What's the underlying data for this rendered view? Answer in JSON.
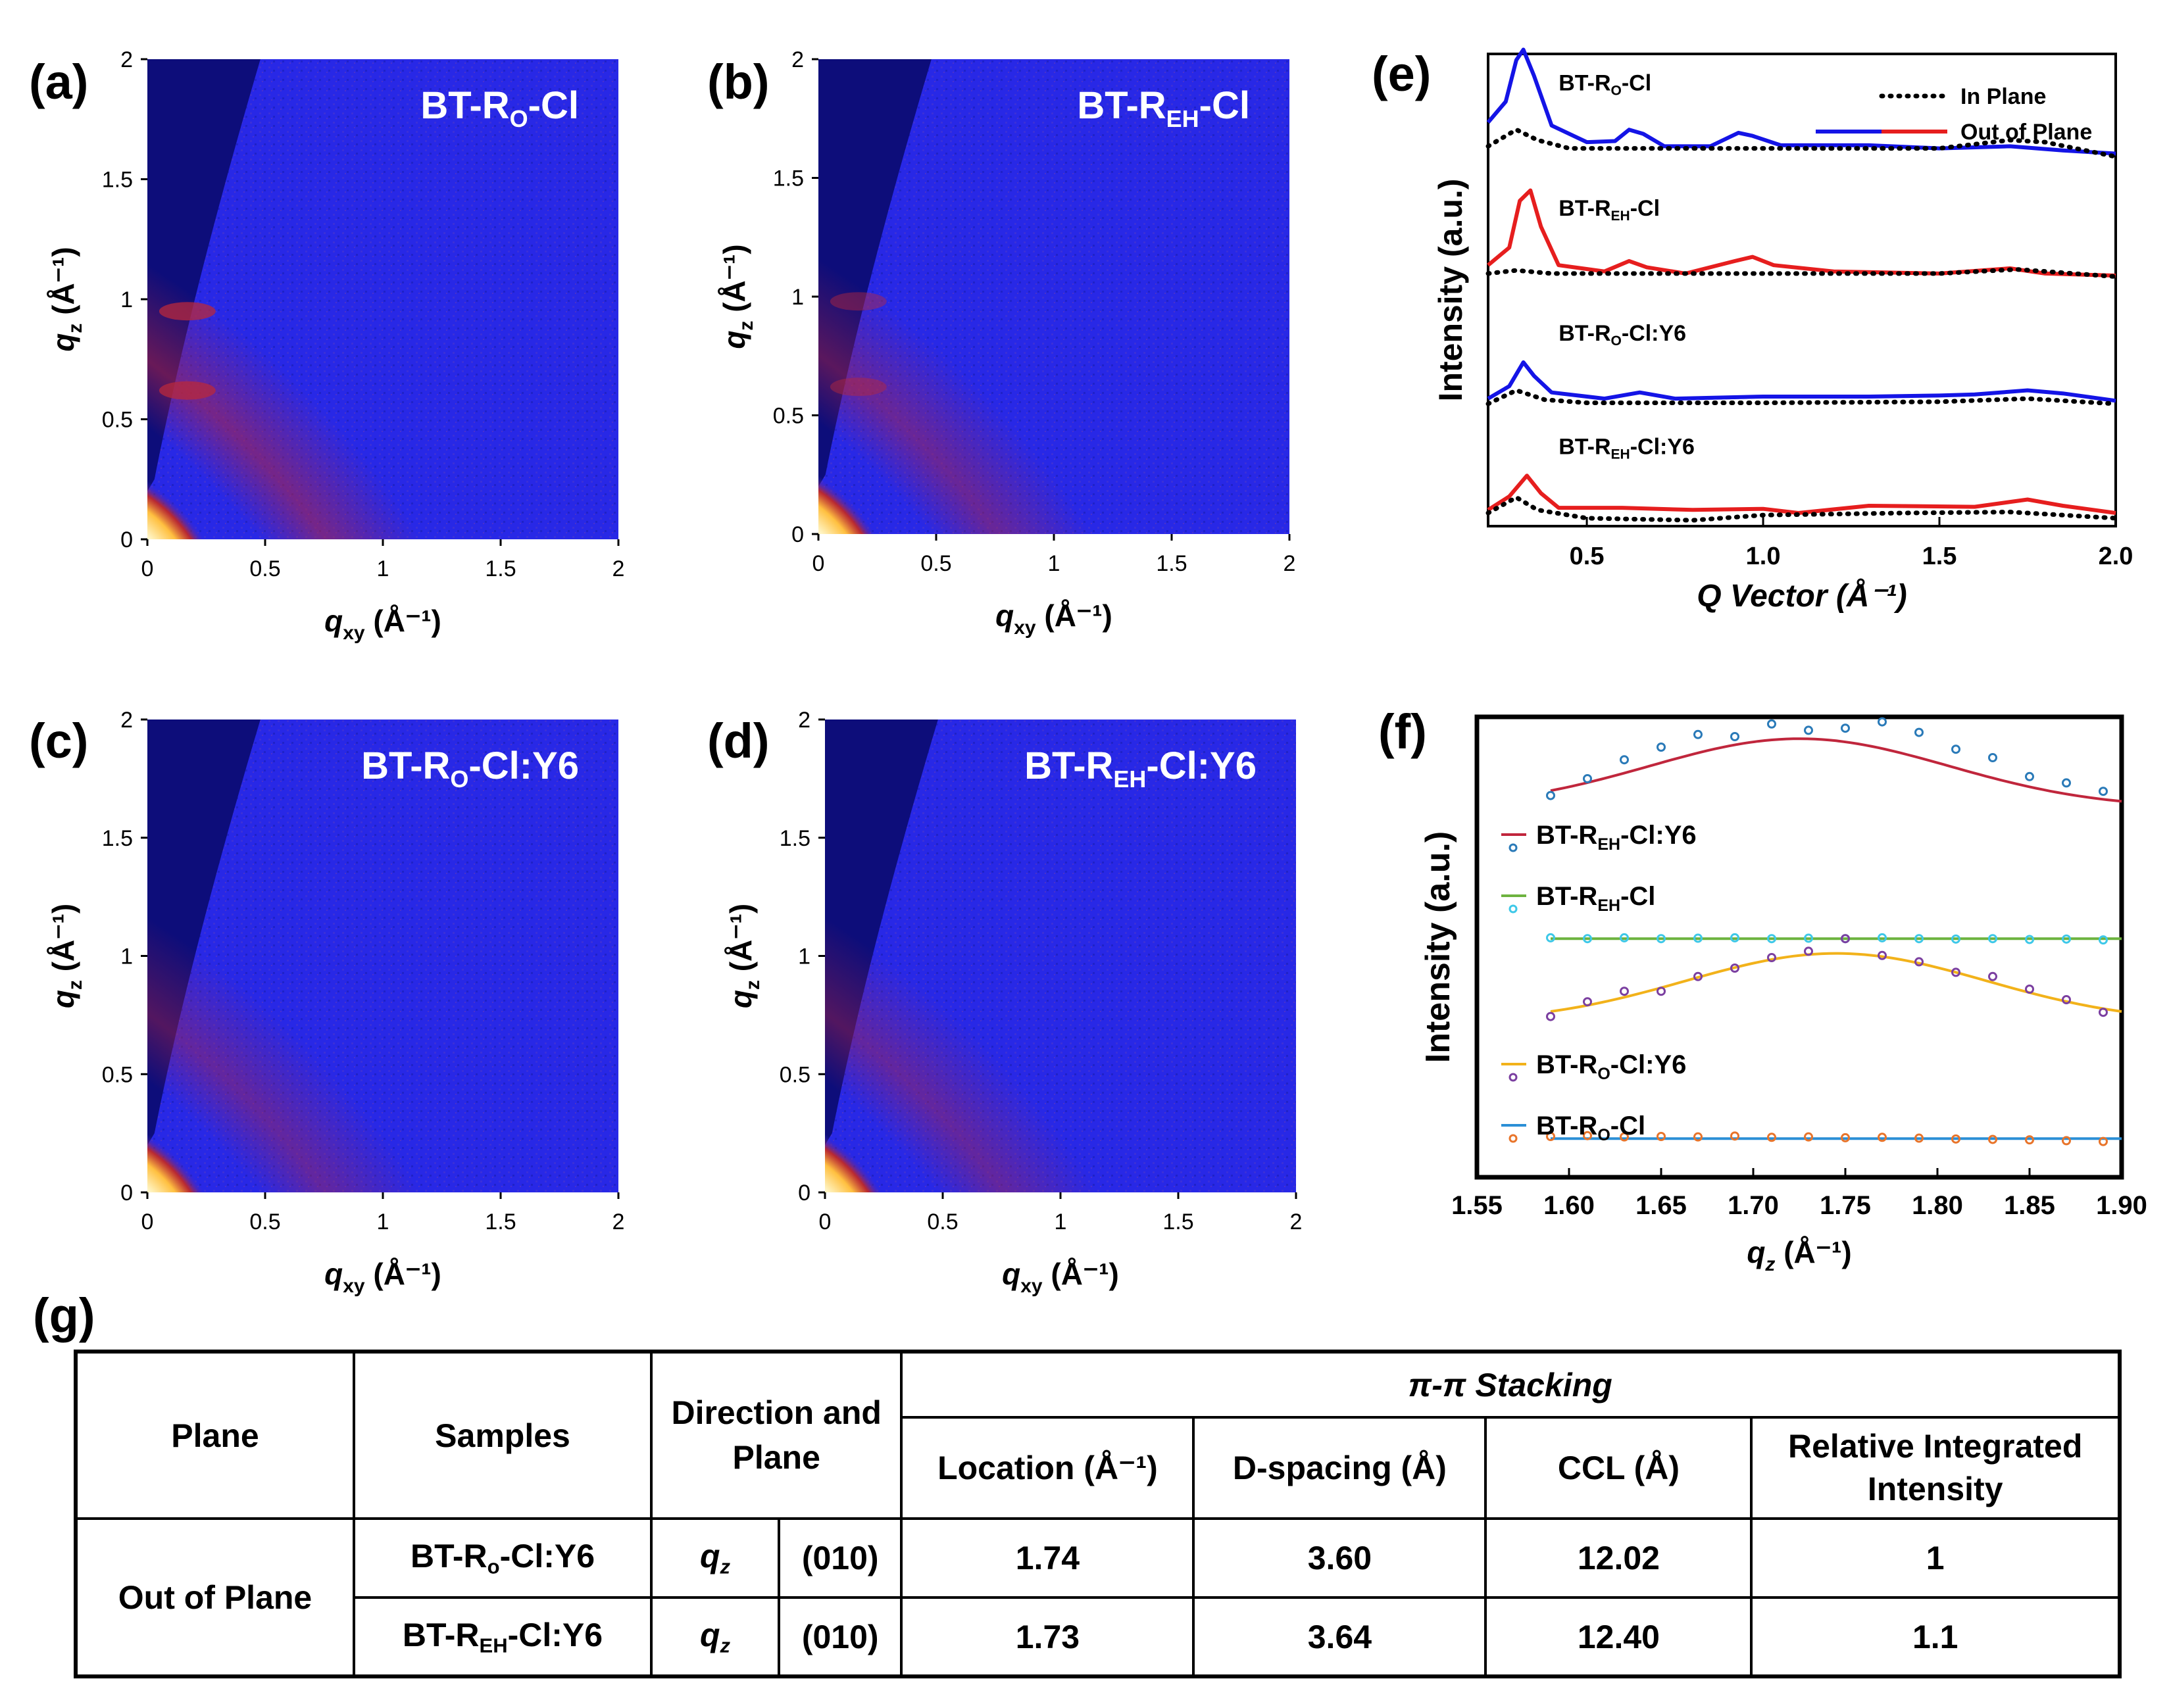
{
  "panel_labels": {
    "a": "(a)",
    "b": "(b)",
    "c": "(c)",
    "d": "(d)",
    "e": "(e)",
    "f": "(f)",
    "g": "(g)"
  },
  "colors": {
    "map_bg": "#2828e6",
    "map_dark": "#0d0d7a",
    "hot": "#ffe070",
    "ring": "#c8281e",
    "blue_line": "#1414e6",
    "red_line": "#e61e1e",
    "dotted": "#000000",
    "fit_eh_y6": "#c0263c",
    "fit_eh": "#6db33f",
    "fit_o_y6": "#f2b21a",
    "fit_o": "#2b8fd6",
    "pts_eh_y6": "#2a7ab8",
    "pts_eh": "#3ec8e8",
    "pts_o_y6": "#7b3fa0",
    "pts_o": "#e8742a"
  },
  "chart_data": [
    {
      "id": "a",
      "type": "heatmap",
      "sample_main": "BT-R",
      "sample_sub": "O",
      "sample_suffix": "-Cl",
      "xlabel_main": "q",
      "xlabel_sub": "xy",
      "xlabel_unit": "(Å⁻¹)",
      "ylabel_main": "q",
      "ylabel_sub": "z",
      "ylabel_unit": "(Å⁻¹)",
      "xlim": [
        0,
        2
      ],
      "ylim": [
        0,
        2
      ],
      "xticks": [
        "0",
        "0.5",
        "1",
        "1.5",
        "2"
      ],
      "yticks": [
        "0",
        "0.5",
        "1",
        "1.5",
        "2"
      ],
      "rings_qz": [
        0.62,
        0.95
      ],
      "ring_strength": 1.0
    },
    {
      "id": "b",
      "type": "heatmap",
      "sample_main": "BT-R",
      "sample_sub": "EH",
      "sample_suffix": "-Cl",
      "xlabel_main": "q",
      "xlabel_sub": "xy",
      "xlabel_unit": "(Å⁻¹)",
      "ylabel_main": "q",
      "ylabel_sub": "z",
      "ylabel_unit": "(Å⁻¹)",
      "xlim": [
        0,
        2
      ],
      "ylim": [
        0,
        2
      ],
      "xticks": [
        "0",
        "0.5",
        "1",
        "1.5",
        "2"
      ],
      "yticks": [
        "0",
        "0.5",
        "1",
        "1.5",
        "2"
      ],
      "rings_qz": [
        0.62,
        0.98
      ],
      "ring_strength": 0.6
    },
    {
      "id": "c",
      "type": "heatmap",
      "sample_main": "BT-R",
      "sample_sub": "O",
      "sample_suffix": "-Cl:Y6",
      "xlabel_main": "q",
      "xlabel_sub": "xy",
      "xlabel_unit": "(Å⁻¹)",
      "ylabel_main": "q",
      "ylabel_sub": "z",
      "ylabel_unit": "(Å⁻¹)",
      "xlim": [
        0,
        2
      ],
      "ylim": [
        0,
        2
      ],
      "xticks": [
        "0",
        "0.5",
        "1",
        "1.5",
        "2"
      ],
      "yticks": [
        "0",
        "0.5",
        "1",
        "1.5",
        "2"
      ],
      "rings_qz": [],
      "ring_strength": 0.4
    },
    {
      "id": "d",
      "type": "heatmap",
      "sample_main": "BT-R",
      "sample_sub": "EH",
      "sample_suffix": "-Cl:Y6",
      "xlabel_main": "q",
      "xlabel_sub": "xy",
      "xlabel_unit": "(Å⁻¹)",
      "ylabel_main": "q",
      "ylabel_sub": "z",
      "ylabel_unit": "(Å⁻¹)",
      "xlim": [
        0,
        2
      ],
      "ylim": [
        0,
        2
      ],
      "xticks": [
        "0",
        "0.5",
        "1",
        "1.5",
        "2"
      ],
      "yticks": [
        "0",
        "0.5",
        "1",
        "1.5",
        "2"
      ],
      "rings_qz": [],
      "ring_strength": 0.4
    },
    {
      "id": "e",
      "type": "line",
      "xlabel": "Q Vector  (Å⁻¹)",
      "ylabel": "Intensity (a.u.)",
      "xlim": [
        0.22,
        2.0
      ],
      "xticks": [
        0.5,
        1.0,
        1.5,
        2.0
      ],
      "xtick_labels": [
        "0.5",
        "1.0",
        "1.5",
        "2.0"
      ],
      "legend": {
        "in_plane": "In Plane",
        "out_of_plane": "Out of Plane",
        "position": "top-right"
      },
      "curves": [
        {
          "label_main": "BT-R",
          "label_sub": "O",
          "label_suffix": "-Cl",
          "color": "blue",
          "base": 0.8,
          "oop": [
            [
              0.22,
              0.25
            ],
            [
              0.27,
              0.45
            ],
            [
              0.3,
              0.85
            ],
            [
              0.32,
              0.95
            ],
            [
              0.35,
              0.7
            ],
            [
              0.4,
              0.22
            ],
            [
              0.5,
              0.06
            ],
            [
              0.58,
              0.07
            ],
            [
              0.62,
              0.18
            ],
            [
              0.66,
              0.14
            ],
            [
              0.72,
              0.02
            ],
            [
              0.85,
              0.02
            ],
            [
              0.93,
              0.15
            ],
            [
              0.97,
              0.12
            ],
            [
              1.05,
              0.03
            ],
            [
              1.3,
              0.03
            ],
            [
              1.5,
              0.0
            ],
            [
              1.7,
              0.02
            ],
            [
              1.85,
              -0.02
            ],
            [
              2.0,
              -0.05
            ]
          ],
          "ip": [
            [
              0.22,
              0.02
            ],
            [
              0.3,
              0.18
            ],
            [
              0.36,
              0.08
            ],
            [
              0.45,
              0.0
            ],
            [
              0.6,
              0.0
            ],
            [
              1.0,
              0.0
            ],
            [
              1.5,
              0.0
            ],
            [
              1.7,
              0.08
            ],
            [
              1.8,
              0.06
            ],
            [
              2.0,
              -0.08
            ]
          ]
        },
        {
          "label_main": "BT-R",
          "label_sub": "EH",
          "label_suffix": "-Cl",
          "color": "red",
          "base": 0.535,
          "oop": [
            [
              0.22,
              0.08
            ],
            [
              0.28,
              0.25
            ],
            [
              0.31,
              0.7
            ],
            [
              0.34,
              0.8
            ],
            [
              0.37,
              0.45
            ],
            [
              0.42,
              0.08
            ],
            [
              0.55,
              0.02
            ],
            [
              0.62,
              0.12
            ],
            [
              0.67,
              0.06
            ],
            [
              0.78,
              0.0
            ],
            [
              0.92,
              0.12
            ],
            [
              0.97,
              0.16
            ],
            [
              1.03,
              0.08
            ],
            [
              1.2,
              0.02
            ],
            [
              1.5,
              0.0
            ],
            [
              1.7,
              0.05
            ],
            [
              1.8,
              0.0
            ],
            [
              2.0,
              -0.02
            ]
          ],
          "ip": [
            [
              0.22,
              0.0
            ],
            [
              0.3,
              0.03
            ],
            [
              0.4,
              0.0
            ],
            [
              0.8,
              0.0
            ],
            [
              1.5,
              0.0
            ],
            [
              1.72,
              0.04
            ],
            [
              1.8,
              0.02
            ],
            [
              2.0,
              -0.03
            ]
          ]
        },
        {
          "label_main": "BT-R",
          "label_sub": "O",
          "label_suffix": "-Cl:Y6",
          "color": "blue",
          "base": 0.27,
          "oop": [
            [
              0.22,
              0.0
            ],
            [
              0.28,
              0.12
            ],
            [
              0.32,
              0.35
            ],
            [
              0.35,
              0.22
            ],
            [
              0.4,
              0.06
            ],
            [
              0.55,
              0.0
            ],
            [
              0.65,
              0.06
            ],
            [
              0.75,
              0.0
            ],
            [
              1.0,
              0.02
            ],
            [
              1.3,
              0.02
            ],
            [
              1.5,
              0.03
            ],
            [
              1.6,
              0.04
            ],
            [
              1.75,
              0.08
            ],
            [
              1.85,
              0.05
            ],
            [
              2.0,
              -0.02
            ]
          ],
          "ip": [
            [
              0.22,
              -0.05
            ],
            [
              0.3,
              0.08
            ],
            [
              0.38,
              -0.01
            ],
            [
              0.5,
              -0.04
            ],
            [
              1.0,
              -0.04
            ],
            [
              1.5,
              -0.03
            ],
            [
              1.75,
              0.0
            ],
            [
              2.0,
              -0.05
            ]
          ]
        },
        {
          "label_main": "BT-R",
          "label_sub": "EH",
          "label_suffix": "-Cl:Y6",
          "color": "red",
          "base": 0.03,
          "oop": [
            [
              0.22,
              0.02
            ],
            [
              0.28,
              0.15
            ],
            [
              0.33,
              0.35
            ],
            [
              0.37,
              0.18
            ],
            [
              0.42,
              0.04
            ],
            [
              0.6,
              0.04
            ],
            [
              0.8,
              0.02
            ],
            [
              1.0,
              0.03
            ],
            [
              1.1,
              -0.01
            ],
            [
              1.3,
              0.06
            ],
            [
              1.6,
              0.05
            ],
            [
              1.75,
              0.12
            ],
            [
              1.85,
              0.06
            ],
            [
              2.0,
              -0.01
            ]
          ],
          "ip": [
            [
              0.22,
              -0.01
            ],
            [
              0.3,
              0.14
            ],
            [
              0.36,
              0.02
            ],
            [
              0.5,
              -0.06
            ],
            [
              0.8,
              -0.08
            ],
            [
              1.0,
              -0.03
            ],
            [
              1.4,
              -0.01
            ],
            [
              1.7,
              0.0
            ],
            [
              2.0,
              -0.06
            ]
          ]
        }
      ]
    },
    {
      "id": "f",
      "type": "scatter",
      "xlabel_main": "q",
      "xlabel_sub": "z",
      "xlabel_unit": "(Å⁻¹)",
      "ylabel": "Intensity (a.u.)",
      "xlim": [
        1.55,
        1.9
      ],
      "xticks": [
        1.55,
        1.6,
        1.65,
        1.7,
        1.75,
        1.8,
        1.85,
        1.9
      ],
      "xtick_labels": [
        "1.55",
        "1.60",
        "1.65",
        "1.70",
        "1.75",
        "1.80",
        "1.85",
        "1.90"
      ],
      "series": [
        {
          "name_main": "BT-R",
          "name_sub": "EH",
          "name_suffix": "-Cl:Y6",
          "fit": "fit_eh_y6",
          "pts": "pts_eh_y6",
          "fit_curve": {
            "a": 0.5,
            "center": 1.725,
            "width": 0.115,
            "base": 0.83
          },
          "x": [
            1.59,
            1.61,
            1.63,
            1.65,
            1.67,
            1.69,
            1.71,
            1.73,
            1.75,
            1.77,
            1.79,
            1.81,
            1.83,
            1.85,
            1.87,
            1.89
          ],
          "y": [
            0.86,
            0.9,
            0.945,
            0.975,
            1.005,
            1.0,
            1.03,
            1.015,
            1.02,
            1.035,
            1.01,
            0.97,
            0.95,
            0.905,
            0.89,
            0.87
          ]
        },
        {
          "name_main": "BT-R",
          "name_sub": "EH",
          "name_suffix": "-Cl",
          "fit": "fit_eh",
          "pts": "pts_eh",
          "fit_curve": {
            "a": 0.0,
            "center": 1.7,
            "width": 1.0,
            "base": 0.52
          },
          "x": [
            1.59,
            1.61,
            1.63,
            1.65,
            1.67,
            1.69,
            1.71,
            1.73,
            1.75,
            1.77,
            1.79,
            1.81,
            1.83,
            1.85,
            1.87,
            1.89
          ],
          "y": [
            0.522,
            0.52,
            0.522,
            0.52,
            0.521,
            0.522,
            0.52,
            0.521,
            0.52,
            0.522,
            0.52,
            0.519,
            0.52,
            0.518,
            0.519,
            0.517
          ]
        },
        {
          "name_main": "BT-R",
          "name_sub": "O",
          "name_suffix": "-Cl:Y6",
          "fit": "fit_o_y6",
          "pts": "pts_o_y6",
          "fit_curve": {
            "a": 0.5,
            "center": 1.745,
            "width": 0.115,
            "base": 0.32
          },
          "x": [
            1.59,
            1.61,
            1.63,
            1.65,
            1.67,
            1.69,
            1.71,
            1.73,
            1.75,
            1.77,
            1.79,
            1.81,
            1.83,
            1.85,
            1.87,
            1.89
          ],
          "y": [
            0.335,
            0.37,
            0.395,
            0.395,
            0.43,
            0.45,
            0.475,
            0.49,
            0.52,
            0.48,
            0.465,
            0.44,
            0.43,
            0.4,
            0.375,
            0.345
          ]
        },
        {
          "name_main": "BT-R",
          "name_sub": "O",
          "name_suffix": "-Cl",
          "fit": "fit_o",
          "pts": "pts_o",
          "fit_curve": {
            "a": 0.0,
            "center": 1.7,
            "width": 1.0,
            "base": 0.045
          },
          "x": [
            1.59,
            1.61,
            1.63,
            1.65,
            1.67,
            1.69,
            1.71,
            1.73,
            1.75,
            1.77,
            1.79,
            1.81,
            1.83,
            1.85,
            1.87,
            1.89
          ],
          "y": [
            0.05,
            0.052,
            0.049,
            0.05,
            0.049,
            0.051,
            0.048,
            0.049,
            0.047,
            0.048,
            0.046,
            0.044,
            0.043,
            0.042,
            0.04,
            0.038
          ]
        }
      ]
    }
  ],
  "table": {
    "col_plane": "Plane",
    "col_samples": "Samples",
    "col_direction": "Direction and Plane",
    "group_header": "π-π Stacking",
    "col_location": "Location (Å⁻¹)",
    "col_dspacing": "D-spacing (Å)",
    "col_ccl": "CCL (Å)",
    "col_intensity": "Relative Integrated Intensity",
    "plane_value": "Out of Plane",
    "rows": [
      {
        "sample_main": "BT-R",
        "sample_sub": "o",
        "sample_suffix": "-Cl:Y6",
        "direction": "q",
        "direction_sub": "z",
        "plane": "(010)",
        "location": "1.74",
        "dspacing": "3.60",
        "ccl": "12.02",
        "intensity": "1"
      },
      {
        "sample_main": "BT-R",
        "sample_sub": "EH",
        "sample_suffix": "-Cl:Y6",
        "direction": "q",
        "direction_sub": "z",
        "plane": "(010)",
        "location": "1.73",
        "dspacing": "3.64",
        "ccl": "12.40",
        "intensity": "1.1"
      }
    ]
  }
}
